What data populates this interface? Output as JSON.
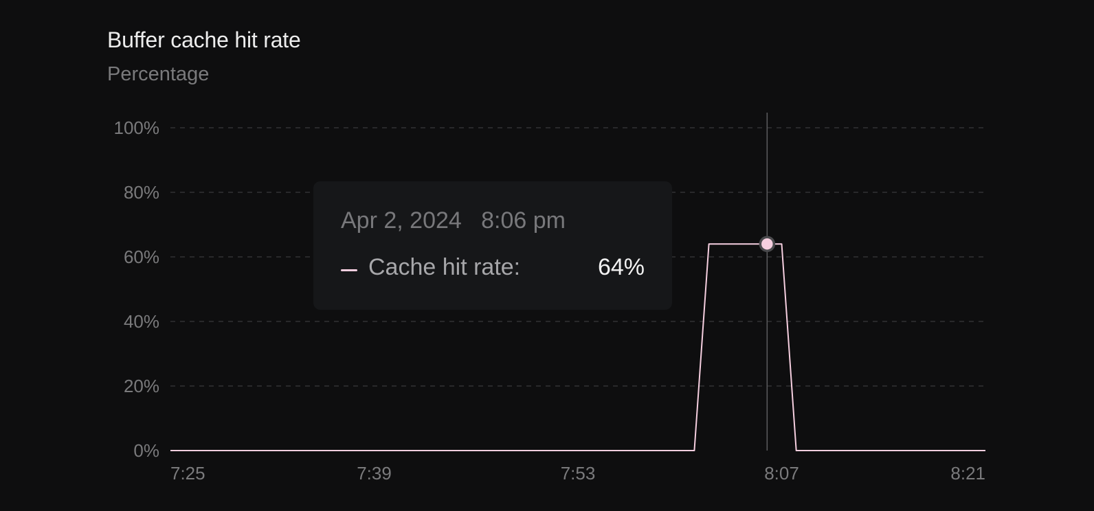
{
  "card": {
    "title": "Buffer cache hit rate",
    "subtitle": "Percentage"
  },
  "tooltip": {
    "date": "Apr 2, 2024",
    "time": "8:06 pm",
    "series_label": "Cache hit rate:",
    "value_text": "64%"
  },
  "colors": {
    "background": "#0e0e0f",
    "series": "#f6cfe0",
    "grid": "#3a3a3c",
    "tick_text": "#7a7a7c",
    "tooltip_bg": "#161719",
    "crosshair": "#5c5c5f"
  },
  "chart_data": {
    "type": "line",
    "title": "Buffer cache hit rate",
    "subtitle": "Percentage",
    "xlabel": "",
    "ylabel": "",
    "ylim": [
      0,
      100
    ],
    "y_ticks": [
      0,
      20,
      40,
      60,
      80,
      100
    ],
    "y_tick_labels": [
      "0%",
      "20%",
      "40%",
      "60%",
      "80%",
      "100%"
    ],
    "x_domain": [
      "7:25",
      "8:21"
    ],
    "x_ticks": [
      "7:25",
      "7:39",
      "7:53",
      "8:07",
      "8:21"
    ],
    "grid": true,
    "legend": "none",
    "series": [
      {
        "values": [
          {
            "x": "7:25",
            "y": 0
          },
          {
            "x": "8:01",
            "y": 0
          },
          {
            "x": "8:02",
            "y": 64
          },
          {
            "x": "8:06",
            "y": 64
          },
          {
            "x": "8:07",
            "y": 64
          },
          {
            "x": "8:08",
            "y": 0
          },
          {
            "x": "8:21",
            "y": 0
          }
        ]
      }
    ],
    "highlight": {
      "x": "8:06",
      "y": 64
    }
  }
}
